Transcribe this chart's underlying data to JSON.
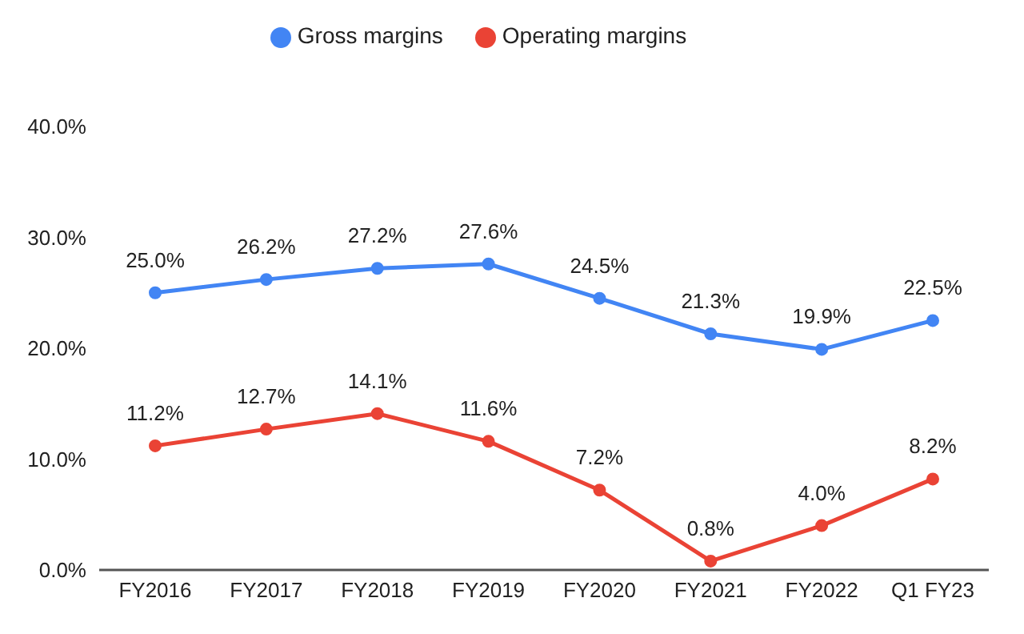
{
  "chart_data": {
    "type": "line",
    "categories": [
      "FY2016",
      "FY2017",
      "FY2018",
      "FY2019",
      "FY2020",
      "FY2021",
      "FY2022",
      "Q1 FY23"
    ],
    "series": [
      {
        "name": "Gross margins",
        "color": "#4285f4",
        "values": [
          25.0,
          26.2,
          27.2,
          27.6,
          24.5,
          21.3,
          19.9,
          22.5
        ],
        "value_labels": [
          "25.0%",
          "26.2%",
          "27.2%",
          "27.6%",
          "24.5%",
          "21.3%",
          "19.9%",
          "22.5%"
        ]
      },
      {
        "name": "Operating margins",
        "color": "#ea4335",
        "values": [
          11.2,
          12.7,
          14.1,
          11.6,
          7.2,
          0.8,
          4.0,
          8.2
        ],
        "value_labels": [
          "11.2%",
          "12.7%",
          "14.1%",
          "11.6%",
          "7.2%",
          "0.8%",
          "4.0%",
          "8.2%"
        ]
      }
    ],
    "ylim": [
      0,
      40
    ],
    "yticks": [
      {
        "value": 0,
        "label": "0.0%"
      },
      {
        "value": 10,
        "label": "10.0%"
      },
      {
        "value": 20,
        "label": "20.0%"
      },
      {
        "value": 30,
        "label": "30.0%"
      },
      {
        "value": 40,
        "label": "40.0%"
      }
    ],
    "grid": false,
    "legend": "top",
    "marker": "circle",
    "line_style": "solid"
  }
}
